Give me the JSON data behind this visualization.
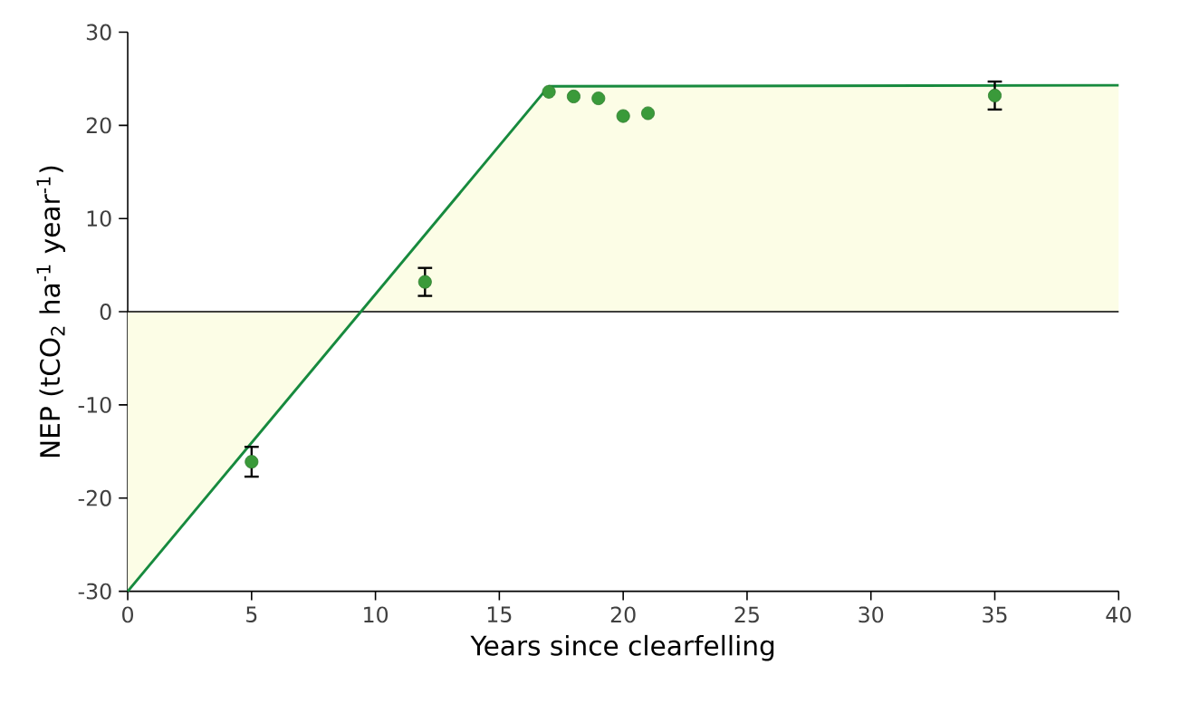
{
  "chart_data": {
    "type": "area",
    "xlabel": "Years since clearfelling",
    "ylabel": "NEP  (tCO$_{2}$ ha$^{-1}$ year$^{-1}$)",
    "xlim": [
      0,
      40
    ],
    "ylim": [
      -30,
      30
    ],
    "xticks": [
      0,
      5,
      10,
      15,
      20,
      25,
      30,
      35,
      40
    ],
    "yticks": [
      -30,
      -20,
      -10,
      0,
      10,
      20,
      30
    ],
    "grid": false,
    "ref_lines": [
      {
        "axis": "y",
        "value": 0,
        "color": "#000000"
      }
    ],
    "series": [
      {
        "color": "#178a3e",
        "x": [
          0,
          17,
          40
        ],
        "values": [
          -30,
          24.2,
          24.3
        ],
        "marker": "none",
        "line_style": "solid"
      },
      {
        "type": "scatter",
        "color": "#3a9a3a",
        "marker": "circle",
        "x": [
          5,
          12,
          17,
          18,
          19,
          20,
          21,
          35
        ],
        "values": [
          -16.1,
          3.2,
          23.6,
          23.1,
          22.9,
          21.0,
          21.3,
          23.2
        ],
        "errors": [
          1.6,
          1.5,
          null,
          null,
          null,
          null,
          null,
          1.5
        ]
      }
    ]
  }
}
